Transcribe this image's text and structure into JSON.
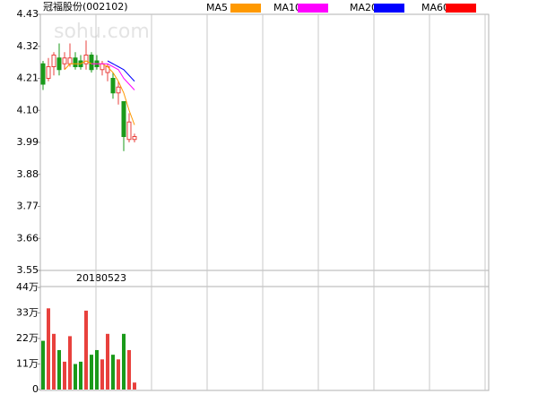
{
  "chart_data": [
    {
      "type": "candlestick",
      "title": "冠福股份(002102)",
      "watermark": "sohu.com",
      "categories": [
        null,
        null,
        null,
        null,
        null,
        null,
        null,
        null,
        null,
        null,
        null,
        null,
        null,
        null,
        null,
        null,
        null,
        null
      ],
      "open": [
        4.26,
        4.21,
        4.25,
        4.28,
        4.26,
        4.26,
        4.28,
        4.27,
        4.26,
        4.29,
        4.27,
        4.24,
        4.23,
        4.21,
        4.16,
        4.13,
        4.0,
        4.0
      ],
      "high": [
        4.27,
        4.28,
        4.3,
        4.33,
        4.3,
        4.33,
        4.3,
        4.29,
        4.34,
        4.3,
        4.29,
        4.27,
        4.26,
        4.23,
        4.2,
        4.13,
        4.09,
        4.02
      ],
      "low": [
        4.17,
        4.2,
        4.22,
        4.22,
        4.24,
        4.25,
        4.24,
        4.24,
        4.24,
        4.23,
        4.24,
        4.22,
        4.2,
        4.14,
        4.12,
        3.96,
        3.99,
        3.99
      ],
      "close": [
        4.19,
        4.25,
        4.29,
        4.24,
        4.28,
        4.28,
        4.25,
        4.25,
        4.29,
        4.24,
        4.25,
        4.26,
        4.25,
        4.16,
        4.18,
        4.01,
        4.06,
        4.01
      ],
      "up_color": "#e8413d",
      "down_color": "#1a9a1a",
      "series": [
        {
          "name": "MA5",
          "color": "#ff9900",
          "values": [
            null,
            null,
            null,
            null,
            4.24,
            4.26,
            4.26,
            4.26,
            4.27,
            4.26,
            4.26,
            4.26,
            4.25,
            4.23,
            4.2,
            4.16,
            4.1,
            4.05
          ]
        },
        {
          "name": "MA10",
          "color": "#ff00ff",
          "values": [
            null,
            null,
            null,
            null,
            null,
            null,
            null,
            null,
            null,
            4.26,
            4.26,
            4.26,
            4.26,
            4.25,
            4.24,
            4.21,
            4.19,
            4.17
          ]
        },
        {
          "name": "MA20",
          "color": "#0000ff",
          "values": [
            null,
            null,
            null,
            null,
            null,
            null,
            null,
            null,
            null,
            null,
            null,
            null,
            4.27,
            4.26,
            4.25,
            4.24,
            4.22,
            4.2
          ]
        },
        {
          "name": "MA60",
          "color": "#ff0000",
          "values": [
            null,
            null,
            null,
            null,
            null,
            null,
            null,
            null,
            null,
            null,
            null,
            null,
            null,
            null,
            null,
            null,
            null,
            null
          ]
        }
      ],
      "ylim": [
        3.55,
        4.43
      ],
      "yticks": [
        4.43,
        4.32,
        4.21,
        {
          "value": 4.1,
          "label": "4.10"
        },
        3.99,
        3.88,
        3.77,
        3.66,
        3.55
      ],
      "date_label": "20180523"
    },
    {
      "type": "bar",
      "values": [
        21,
        35,
        24,
        17,
        12,
        23,
        11,
        12,
        34,
        15,
        17,
        13,
        24,
        15,
        13,
        24,
        17,
        3
      ],
      "colors": [
        "#1a9a1a",
        "#e8413d",
        "#e8413d",
        "#1a9a1a",
        "#e8413d",
        "#e8413d",
        "#1a9a1a",
        "#1a9a1a",
        "#e8413d",
        "#1a9a1a",
        "#1a9a1a",
        "#e8413d",
        "#e8413d",
        "#1a9a1a",
        "#e8413d",
        "#1a9a1a",
        "#e8413d",
        "#e8413d"
      ],
      "ylim": [
        0,
        44
      ],
      "yticks": [
        {
          "value": 44,
          "label": "44万"
        },
        {
          "value": 33,
          "label": "33万"
        },
        {
          "value": 22,
          "label": "22万"
        },
        {
          "value": 11,
          "label": "11万"
        },
        0
      ]
    }
  ]
}
